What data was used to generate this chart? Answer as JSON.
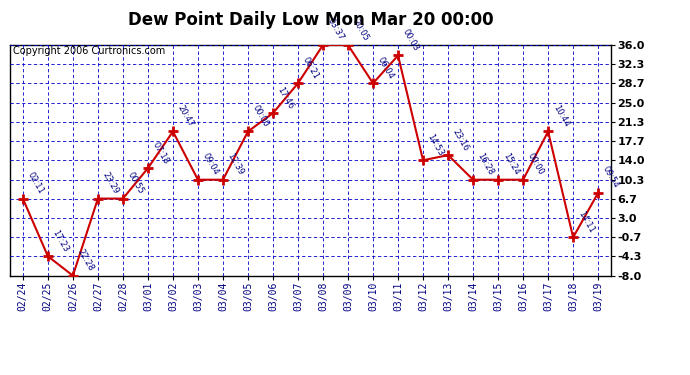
{
  "title": "Dew Point Daily Low Mon Mar 20 00:00",
  "copyright": "Copyright 2006 Curtronics.com",
  "x_labels": [
    "02/24",
    "02/25",
    "02/26",
    "02/27",
    "02/28",
    "03/01",
    "03/02",
    "03/03",
    "03/04",
    "03/05",
    "03/06",
    "03/07",
    "03/08",
    "03/09",
    "03/10",
    "03/11",
    "03/12",
    "03/13",
    "03/14",
    "03/15",
    "03/16",
    "03/17",
    "03/18",
    "03/19"
  ],
  "y_values": [
    6.7,
    -4.3,
    -8.0,
    6.7,
    6.7,
    12.5,
    19.5,
    10.3,
    10.3,
    19.5,
    23.0,
    28.7,
    36.0,
    36.0,
    28.7,
    34.0,
    14.0,
    15.0,
    10.3,
    10.3,
    10.3,
    19.5,
    -0.7,
    7.8
  ],
  "point_labels": [
    "02:11",
    "17:23",
    "22:28",
    "23:29",
    "00:55",
    "07:18",
    "20:47",
    "09:04",
    "12:39",
    "00:00",
    "17:46",
    "06:21",
    "03:37",
    "20:05",
    "06:04",
    "00:03",
    "14:53",
    "23:16",
    "16:28",
    "15:24",
    "00:00",
    "10:44",
    "14:11",
    "09:54"
  ],
  "ylim_min": -8.0,
  "ylim_max": 36.0,
  "yticks": [
    36.0,
    32.3,
    28.7,
    25.0,
    21.3,
    17.7,
    14.0,
    10.3,
    6.7,
    3.0,
    -0.7,
    -4.3,
    -8.0
  ],
  "ytick_labels": [
    "36.0",
    "32.3",
    "28.7",
    "25.0",
    "21.3",
    "17.7",
    "14.0",
    "10.3",
    "6.7",
    "3.0",
    "-0.7",
    "-4.3",
    "-8.0"
  ],
  "line_color": "#cc0000",
  "grid_color": "#0000cc",
  "fig_bg_color": "#ffffff",
  "plot_bg_color": "#ffffff",
  "border_color": "#000000",
  "title_fontsize": 12,
  "tick_fontsize": 8,
  "xlabel_fontsize": 7,
  "point_label_fontsize": 6,
  "copyright_fontsize": 7
}
